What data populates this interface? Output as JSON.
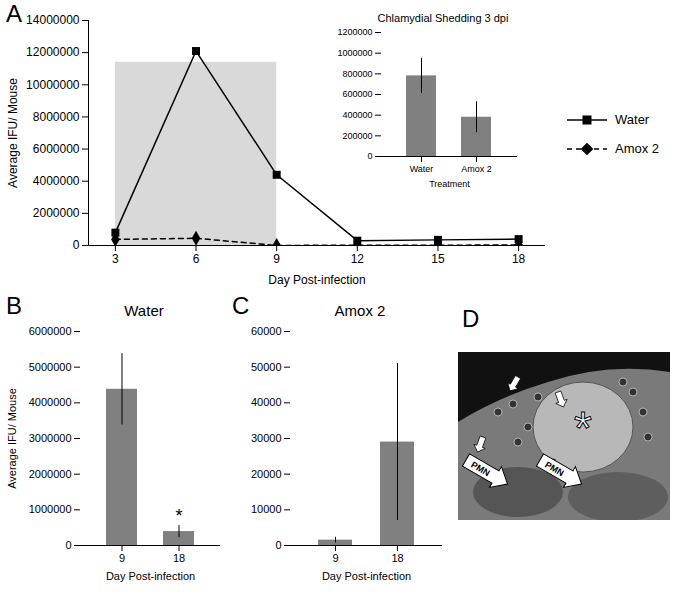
{
  "chart_data": [
    {
      "panel_label": "A",
      "type": "line",
      "x_label": "Day Post-infection",
      "y_label": "Average IFU/ Mouse",
      "x": [
        3,
        6,
        9,
        12,
        15,
        18
      ],
      "xlim": [
        2,
        19
      ],
      "xticks": [
        3,
        6,
        9,
        12,
        15,
        18
      ],
      "ylim": [
        0,
        14000000
      ],
      "yticks": [
        0,
        2000000,
        4000000,
        6000000,
        8000000,
        10000000,
        12000000,
        14000000
      ],
      "highlight": {
        "x": [
          3,
          9
        ],
        "y": [
          0,
          11400000
        ],
        "color": "#d9d9d9"
      },
      "legend": "right",
      "series": [
        {
          "name": "Water",
          "color": "#000000",
          "marker": "square",
          "line_style": "solid",
          "values": [
            800000,
            12100000,
            4400000,
            300000,
            350000,
            400000
          ]
        },
        {
          "name": "Amox 2",
          "color": "#000000",
          "marker": "diamond",
          "line_style": "dashed",
          "values": [
            380000,
            450000,
            2000,
            20000,
            20000,
            29000
          ]
        }
      ]
    },
    {
      "type": "bar",
      "title": "Chlamydial Shedding 3 dpi",
      "x_label": "Treatment",
      "categories": [
        "Water",
        "Amox 2"
      ],
      "values": [
        780000,
        380000
      ],
      "errors": [
        170000,
        150000
      ],
      "color": "#808080",
      "ylim": [
        0,
        1200000
      ],
      "yticks": [
        0,
        200000,
        400000,
        600000,
        800000,
        1000000,
        1200000
      ]
    },
    {
      "panel_label": "B",
      "type": "bar",
      "title": "Water",
      "x_label": "Day Post-infection",
      "y_label": "Average IFU/ Mouse",
      "categories": [
        "9",
        "18"
      ],
      "values": [
        4380000,
        390000
      ],
      "errors": [
        1000000,
        170000
      ],
      "color": "#808080",
      "ylim": [
        0,
        6000000
      ],
      "yticks": [
        0,
        1000000,
        2000000,
        3000000,
        4000000,
        5000000,
        6000000
      ],
      "annotations": [
        {
          "category": "18",
          "text": "*"
        }
      ]
    },
    {
      "panel_label": "C",
      "type": "bar",
      "title": "Amox 2",
      "x_label": "Day Post-infection",
      "categories": [
        "9",
        "18"
      ],
      "values": [
        1500,
        29000
      ],
      "errors": [
        800,
        22000
      ],
      "color": "#808080",
      "ylim": [
        0,
        60000
      ],
      "yticks": [
        0,
        10000,
        20000,
        30000,
        40000,
        50000,
        60000
      ]
    }
  ],
  "micrograph": {
    "panel_label": "D",
    "center_label": "*",
    "cell_labels": [
      "PMN",
      "PMN"
    ]
  }
}
